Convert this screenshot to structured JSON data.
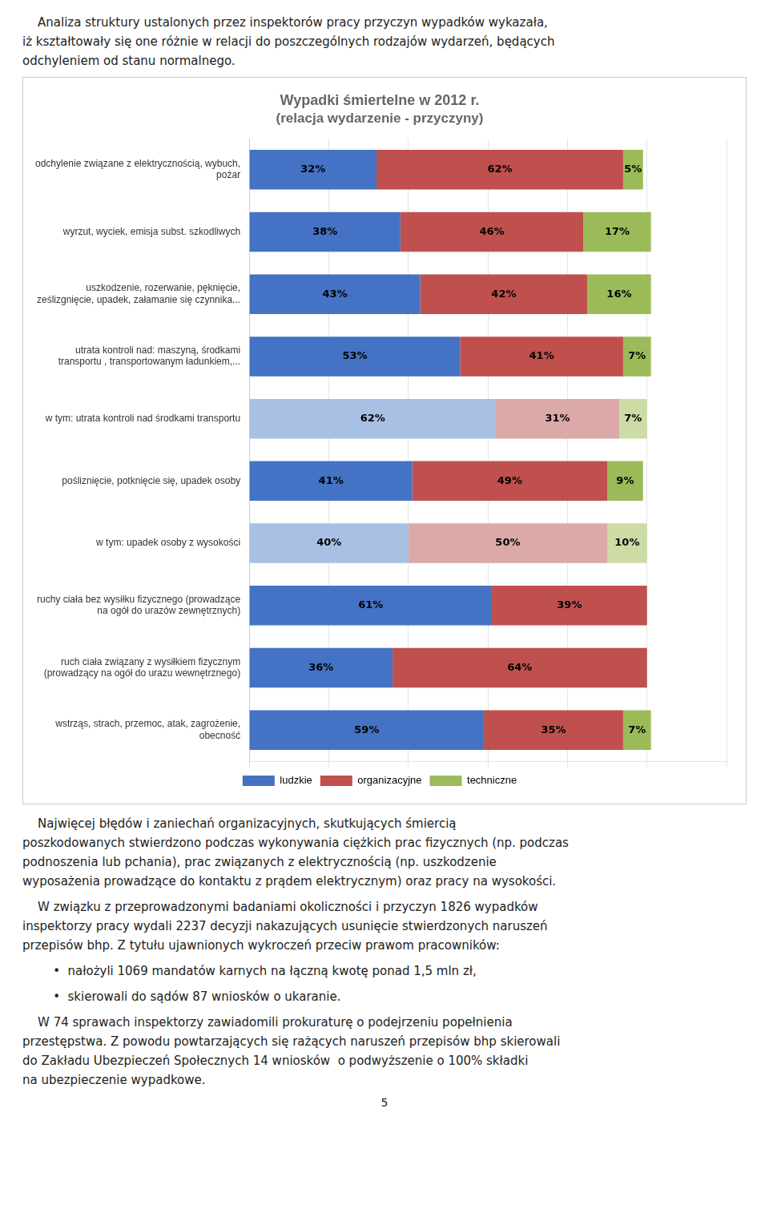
{
  "chart_data": {
    "type": "bar",
    "orientation": "horizontal",
    "stacked": true,
    "title": "Wypadki śmiertelne w 2012 r.",
    "subtitle": "(relacja wydarzenie - przyczyny)",
    "annotations": [
      "    Analiza struktury ustalonych przez inspektorów pracy przyczyn wypadków wykazała,\niż kształtowały się one różnie w relacji do poszczególnych rodzajów wydarzeń, będących\nodchyleniem od stanu normalnego.",
      "    Najwięcej błędów i zaniechań organizacyjnych, skutkujących śmiercią\nposzkodowanych stwierdzono podczas wykonywania ciężkich prac fizycznych (np. podczas\npodnoszenia lub pchania), prac związanych z elektrycznością (np. uszkodzenie\nwyposażenia prowadzące do kontaktu z prądem elektrycznym) oraz pracy na wysokości.",
      "    W związku z przeprowadzonymi badaniami okoliczności i przyczyn 1826 wypadków\ninspektorzy pracy wydali 2237 decyzji nakazujących usunięcie stwierdzonych naruszeń\nprzepisów bhp. Z tytułu ujawnionych wykroczeń przeciw prawom pracowników:",
      "        •  nałożyli 1069 mandatów karnych na łączną kwotę ponad 1,5 mln zł,",
      "        •  skierowali do sądów 87 wniosków o ukaranie.",
      "    W 74 sprawach inspektorzy zawiadomili prokuraturę o podejrzeniu popełnienia\nprzestępstwa. Z powodu powtarzających się rażących naruszeń przepisów bhp skierowali\ndo Zakładu Ubezpieczeń Społecznych 14 wniosków  o podwyższenie o 100% składki\nna ubezpieczenie wypadkowe.",
      "5"
    ],
    "categories": [
      "odchylenie związane z elektrycznością, wybuch,\npożar",
      "wyrzut, wyciek, emisja subst. szkodliwych",
      "uszkodzenie, rozerwanie, pęknięcie,\nześlizgnięcie, upadek, załamanie się czynnika...",
      "utrata kontroli nad: maszyną, środkami\ntransportu , transportowanym ładunkiem,...",
      "w tym: utrata kontroli nad środkami transportu",
      "pośliznięcie, potknięcie się, upadek osoby",
      "w tym: upadek osoby z wysokości",
      "ruchy ciała bez wysiłku fizycznego (prowadzące\nna ogół do urazów zewnętrznych)",
      "ruch ciała związany z wysiłkiem fizycznym\n(prowadzący na ogół do urazu wewnętrznego)",
      "wstrząs, strach, przemoc, atak, zagrożenie,\nobecność"
    ],
    "series": [
      {
        "name": "ludzkie",
        "color": "#4472C4",
        "colors": [
          "#4472C4",
          "#4472C4",
          "#4472C4",
          "#4472C4",
          "#A8C0E4",
          "#4472C4",
          "#A8C0E4",
          "#4472C4",
          "#4472C4",
          "#4472C4"
        ],
        "values": [
          32,
          38,
          43,
          53,
          62,
          41,
          40,
          61,
          36,
          59
        ],
        "value_labels": [
          "32%",
          "38%",
          "43%",
          "53%",
          "62%",
          "41%",
          "40%",
          "61%",
          "36%",
          "59%"
        ]
      },
      {
        "name": "organizacyjne",
        "color": "#C0504D",
        "colors": [
          "#C0504D",
          "#C0504D",
          "#C0504D",
          "#C0504D",
          "#DBA9A8",
          "#C0504D",
          "#DBA9A8",
          "#C0504D",
          "#C0504D",
          "#C0504D"
        ],
        "values": [
          62,
          46,
          42,
          41,
          31,
          49,
          50,
          39,
          64,
          35
        ],
        "value_labels": [
          "62%",
          "46%",
          "42%",
          "41%",
          "31%",
          "49%",
          "50%",
          "39%",
          "64%",
          "35%"
        ]
      },
      {
        "name": "techniczne",
        "color": "#9BBB59",
        "colors": [
          "#9BBB59",
          "#9BBB59",
          "#9BBB59",
          "#9BBB59",
          "#CDDBA5",
          "#9BBB59",
          "#CDDBA5",
          "#9BBB59",
          "#9BBB59",
          "#9BBB59"
        ],
        "values": [
          5,
          17,
          16,
          7,
          7,
          9,
          10,
          0,
          0,
          7
        ],
        "value_labels": [
          "5%",
          "17%",
          "16%",
          "7%",
          "7%",
          "9%",
          "10%",
          null,
          null,
          "7%"
        ]
      }
    ],
    "xlim": [
      0,
      120
    ],
    "xticks": [
      0,
      20,
      40,
      60,
      80,
      100,
      120
    ],
    "grid": true,
    "legend": "bottom",
    "data_labels": true,
    "tick_labels": "y"
  }
}
